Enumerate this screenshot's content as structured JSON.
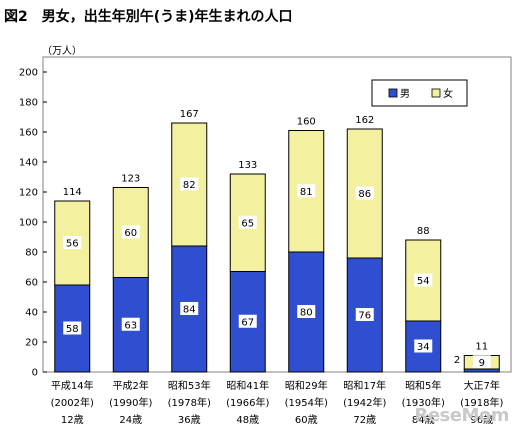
{
  "title": "図2　男女，出生年別午(うま)年生まれの人口",
  "unit_label": "（万人）",
  "watermark": "ReseMom",
  "chart_data": {
    "type": "bar",
    "stacked": true,
    "title": "図2　男女，出生年別午(うま)年生まれの人口",
    "ylabel": "（万人）",
    "ylim": [
      0,
      200
    ],
    "yticks": [
      0,
      20,
      40,
      60,
      80,
      100,
      120,
      140,
      160,
      180,
      200
    ],
    "grid": false,
    "legend_position": "top-right",
    "categories": [
      [
        "平成14年",
        "(2002年)",
        "12歳"
      ],
      [
        "平成2年",
        "(1990年)",
        "24歳"
      ],
      [
        "昭和53年",
        "(1978年)",
        "36歳"
      ],
      [
        "昭和41年",
        "(1966年)",
        "48歳"
      ],
      [
        "昭和29年",
        "(1954年)",
        "60歳"
      ],
      [
        "昭和17年",
        "(1942年)",
        "72歳"
      ],
      [
        "昭和5年",
        "(1930年)",
        "84歳"
      ],
      [
        "大正7年",
        "(1918年)",
        "96歳"
      ]
    ],
    "series": [
      {
        "name": "男",
        "values": [
          58,
          63,
          84,
          67,
          80,
          76,
          34,
          2
        ],
        "color": "#2f4fd0"
      },
      {
        "name": "女",
        "values": [
          56,
          60,
          82,
          65,
          81,
          86,
          54,
          9
        ],
        "color": "#f3f1a0"
      }
    ],
    "totals": [
      114,
      123,
      167,
      133,
      160,
      162,
      88,
      11
    ],
    "value_labels": {
      "male": [
        "58",
        "63",
        "84",
        "67",
        "80",
        "76",
        "34",
        "2"
      ],
      "female": [
        "56",
        "60",
        "82",
        "65",
        "81",
        "86",
        "54",
        "9"
      ],
      "total": [
        "114",
        "123",
        "167",
        "133",
        "160",
        "162",
        "88",
        "11"
      ]
    },
    "legend": [
      "男",
      "女"
    ]
  }
}
